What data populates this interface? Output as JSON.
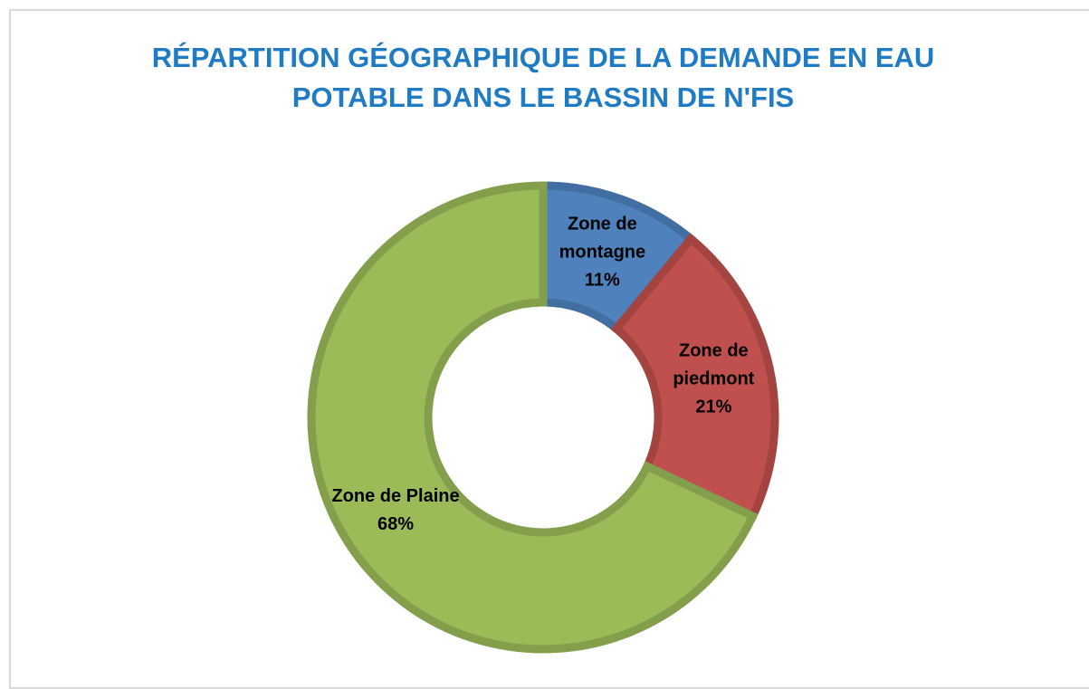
{
  "chart_data": {
    "type": "donut",
    "title": "RÉPARTITION GÉOGRAPHIQUE DE LA DEMANDE EN EAU POTABLE DANS LE BASSIN DE N'FIS",
    "categories": [
      "Zone de montagne",
      "Zone de piedmont",
      "Zone de Plaine"
    ],
    "values": [
      11,
      21,
      68
    ],
    "value_labels": [
      "11%",
      "21%",
      "68%"
    ],
    "colors": [
      "#4f81bd",
      "#c0504d",
      "#9bbb59"
    ]
  }
}
